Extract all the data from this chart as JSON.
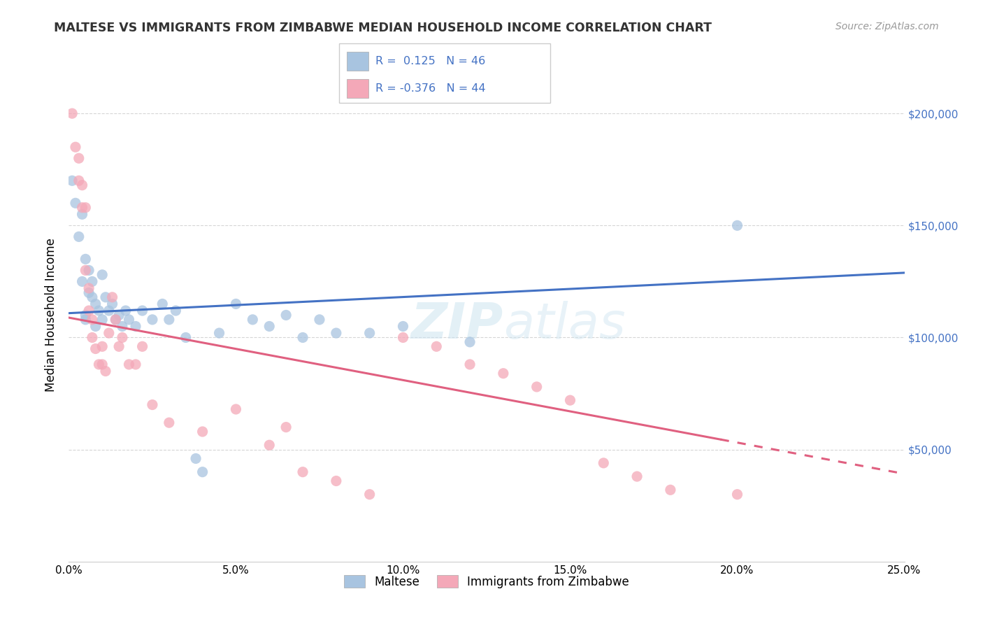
{
  "title": "MALTESE VS IMMIGRANTS FROM ZIMBABWE MEDIAN HOUSEHOLD INCOME CORRELATION CHART",
  "source": "Source: ZipAtlas.com",
  "ylabel": "Median Household Income",
  "xlim": [
    0.0,
    0.25
  ],
  "ylim": [
    0,
    220000
  ],
  "xtick_labels": [
    "0.0%",
    "5.0%",
    "10.0%",
    "15.0%",
    "20.0%",
    "25.0%"
  ],
  "xtick_positions": [
    0.0,
    0.05,
    0.1,
    0.15,
    0.2,
    0.25
  ],
  "ytick_labels": [
    "$50,000",
    "$100,000",
    "$150,000",
    "$200,000"
  ],
  "ytick_positions": [
    50000,
    100000,
    150000,
    200000
  ],
  "watermark": "ZIPatlas",
  "legend_labels": [
    "Maltese",
    "Immigrants from Zimbabwe"
  ],
  "maltese_R": 0.125,
  "maltese_N": 46,
  "zimbabwe_R": -0.376,
  "zimbabwe_N": 44,
  "maltese_color": "#a8c4e0",
  "zimbabwe_color": "#f4a8b8",
  "maltese_line_color": "#4472c4",
  "zimbabwe_line_color": "#e06080",
  "background_color": "#ffffff",
  "grid_color": "#cccccc",
  "maltese_x": [
    0.001,
    0.002,
    0.003,
    0.004,
    0.004,
    0.005,
    0.005,
    0.005,
    0.006,
    0.006,
    0.007,
    0.007,
    0.008,
    0.008,
    0.009,
    0.01,
    0.01,
    0.011,
    0.012,
    0.013,
    0.014,
    0.015,
    0.016,
    0.017,
    0.018,
    0.02,
    0.022,
    0.025,
    0.028,
    0.03,
    0.032,
    0.035,
    0.038,
    0.04,
    0.045,
    0.05,
    0.055,
    0.06,
    0.065,
    0.07,
    0.075,
    0.08,
    0.09,
    0.1,
    0.12,
    0.2
  ],
  "maltese_y": [
    170000,
    160000,
    145000,
    155000,
    125000,
    135000,
    110000,
    108000,
    130000,
    120000,
    125000,
    118000,
    115000,
    105000,
    112000,
    128000,
    108000,
    118000,
    112000,
    115000,
    108000,
    110000,
    105000,
    112000,
    108000,
    105000,
    112000,
    108000,
    115000,
    108000,
    112000,
    100000,
    46000,
    40000,
    102000,
    115000,
    108000,
    105000,
    110000,
    100000,
    108000,
    102000,
    102000,
    105000,
    98000,
    150000
  ],
  "zimbabwe_x": [
    0.001,
    0.002,
    0.003,
    0.003,
    0.004,
    0.004,
    0.005,
    0.005,
    0.006,
    0.006,
    0.007,
    0.007,
    0.008,
    0.009,
    0.01,
    0.01,
    0.011,
    0.012,
    0.013,
    0.014,
    0.015,
    0.016,
    0.018,
    0.02,
    0.022,
    0.025,
    0.03,
    0.04,
    0.05,
    0.06,
    0.065,
    0.07,
    0.08,
    0.09,
    0.1,
    0.11,
    0.12,
    0.13,
    0.14,
    0.15,
    0.16,
    0.17,
    0.18,
    0.2
  ],
  "zimbabwe_y": [
    200000,
    185000,
    180000,
    170000,
    168000,
    158000,
    158000,
    130000,
    122000,
    112000,
    108000,
    100000,
    95000,
    88000,
    96000,
    88000,
    85000,
    102000,
    118000,
    108000,
    96000,
    100000,
    88000,
    88000,
    96000,
    70000,
    62000,
    58000,
    68000,
    52000,
    60000,
    40000,
    36000,
    30000,
    100000,
    96000,
    88000,
    84000,
    78000,
    72000,
    44000,
    38000,
    32000,
    30000
  ]
}
